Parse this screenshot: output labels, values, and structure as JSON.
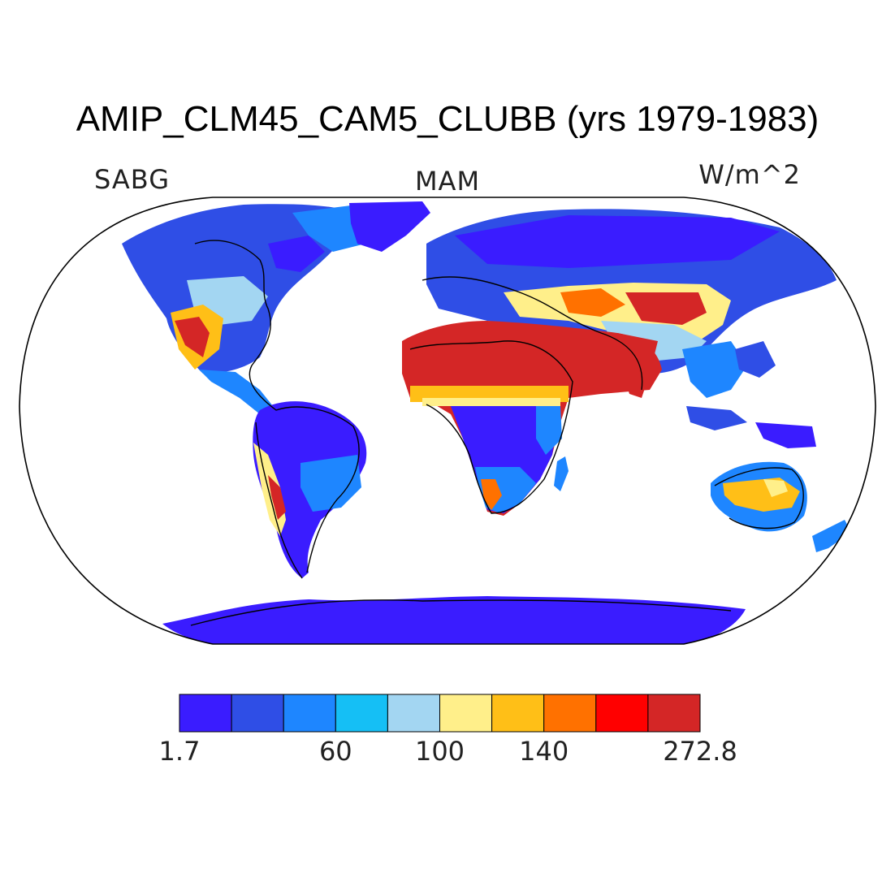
{
  "title": "AMIP_CLM45_CAM5_CLUBB (yrs 1979-1983)",
  "variable": "SABG",
  "season": "MAM",
  "units": "W/m^2",
  "colorbar": {
    "colors": [
      "#3a1cff",
      "#2f4ee6",
      "#1e86ff",
      "#15bff5",
      "#a3d6f2",
      "#ffef8a",
      "#ffbf17",
      "#ff7100",
      "#ff0000",
      "#d42626"
    ],
    "labels": [
      {
        "text": "1.7",
        "boundary": 0
      },
      {
        "text": "60",
        "boundary": 3
      },
      {
        "text": "100",
        "boundary": 5
      },
      {
        "text": "140",
        "boundary": 7
      },
      {
        "text": "272.8",
        "boundary": 10
      }
    ]
  }
}
